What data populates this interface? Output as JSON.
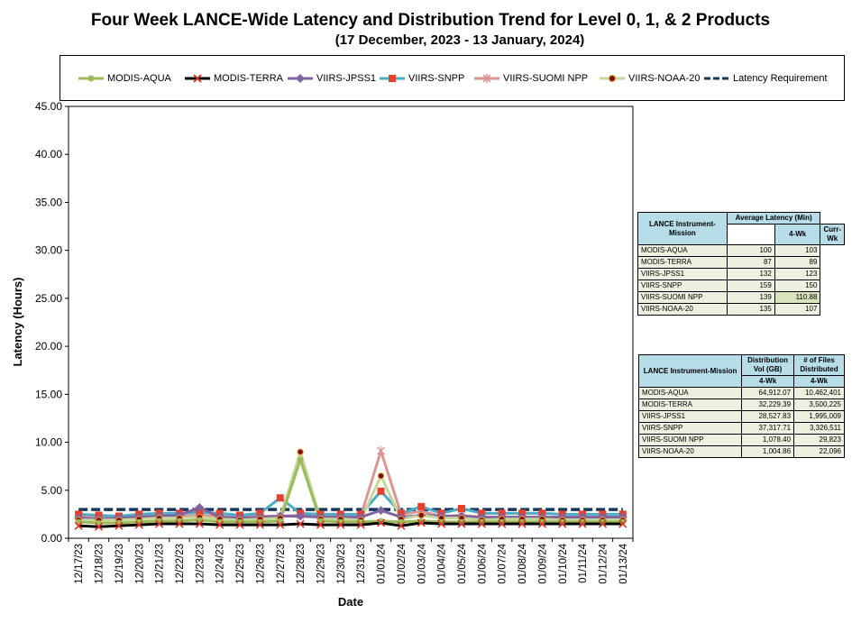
{
  "title": "Four Week LANCE-Wide Latency and Distribution Trend for Level 0, 1, & 2 Products",
  "subtitle": "(17  December,  2023  -  13  January, 2024)",
  "chart_data": {
    "type": "line",
    "xlabel": "Date",
    "ylabel": "Latency (Hours)",
    "ylim": [
      0,
      45
    ],
    "yticks": [
      "0.00",
      "5.00",
      "10.00",
      "15.00",
      "20.00",
      "25.00",
      "30.00",
      "35.00",
      "40.00",
      "45.00"
    ],
    "y_tick_values": [
      0,
      5,
      10,
      15,
      20,
      25,
      30,
      35,
      40,
      45
    ],
    "categories": [
      "12/17/23",
      "12/18/23",
      "12/19/23",
      "12/20/23",
      "12/21/23",
      "12/22/23",
      "12/23/23",
      "12/24/23",
      "12/25/23",
      "12/26/23",
      "12/27/23",
      "12/28/23",
      "12/29/23",
      "12/30/23",
      "12/31/23",
      "01/01/24",
      "01/02/24",
      "01/03/24",
      "01/04/24",
      "01/05/24",
      "01/06/24",
      "01/07/24",
      "01/08/24",
      "01/09/24",
      "01/10/24",
      "01/11/24",
      "01/12/24",
      "01/13/24"
    ],
    "grid": false,
    "legend_position": "top",
    "series": [
      {
        "name": "MODIS-AQUA",
        "color": "#9bbb59",
        "marker": "circle",
        "values": [
          1.7,
          1.6,
          1.6,
          1.7,
          1.8,
          1.8,
          1.9,
          1.7,
          1.7,
          1.7,
          1.8,
          8.2,
          1.8,
          1.7,
          1.7,
          1.8,
          1.7,
          1.8,
          1.7,
          1.7,
          1.7,
          1.7,
          1.7,
          1.7,
          1.7,
          1.7,
          1.7,
          1.7
        ]
      },
      {
        "name": "MODIS-TERRA",
        "color": "#000000",
        "marker": "x",
        "values": [
          1.3,
          1.2,
          1.3,
          1.4,
          1.5,
          1.5,
          1.5,
          1.4,
          1.4,
          1.4,
          1.4,
          1.5,
          1.4,
          1.4,
          1.4,
          1.6,
          1.3,
          1.6,
          1.5,
          1.5,
          1.5,
          1.5,
          1.5,
          1.5,
          1.5,
          1.5,
          1.5,
          1.5
        ]
      },
      {
        "name": "VIIRS-JPSS1",
        "color": "#8064a2",
        "marker": "diamond",
        "values": [
          2.1,
          2.0,
          2.1,
          2.2,
          2.3,
          2.4,
          3.2,
          2.2,
          2.1,
          2.2,
          2.3,
          2.3,
          2.2,
          2.2,
          2.2,
          2.9,
          2.2,
          2.4,
          2.3,
          2.3,
          2.2,
          2.2,
          2.2,
          2.2,
          2.2,
          2.2,
          2.2,
          2.2
        ]
      },
      {
        "name": "VIIRS-SNPP",
        "color": "#4bacc6",
        "marker": "square",
        "values": [
          2.5,
          2.4,
          2.3,
          2.5,
          2.6,
          2.6,
          2.7,
          2.6,
          2.4,
          2.6,
          4.2,
          2.6,
          2.5,
          2.5,
          2.5,
          4.9,
          2.6,
          3.3,
          2.6,
          3.1,
          2.6,
          2.6,
          2.6,
          2.6,
          2.5,
          2.5,
          2.5,
          2.5
        ]
      },
      {
        "name": "VIIRS-SUOMI NPP",
        "color": "#d99694",
        "marker": "asterisk",
        "values": [
          2.3,
          2.2,
          2.2,
          2.3,
          2.3,
          2.3,
          2.4,
          2.3,
          2.2,
          2.3,
          2.3,
          2.4,
          2.3,
          2.3,
          2.3,
          9.1,
          2.5,
          2.8,
          2.3,
          2.4,
          2.2,
          2.2,
          2.2,
          2.2,
          2.2,
          2.2,
          2.2,
          2.2
        ]
      },
      {
        "name": "VIIRS-NOAA-20",
        "color": "#c4d79b",
        "marker": "dot",
        "values": [
          1.9,
          1.9,
          1.9,
          2.0,
          2.1,
          2.1,
          2.2,
          2.0,
          1.9,
          2.0,
          2.1,
          9.0,
          2.0,
          2.0,
          1.9,
          6.5,
          2.0,
          2.4,
          2.1,
          2.1,
          1.9,
          2.0,
          2.0,
          2.0,
          1.9,
          1.9,
          1.9,
          1.9
        ]
      },
      {
        "name": "Latency Requirement",
        "color": "#17375e",
        "marker": "dash",
        "values": [
          3,
          3,
          3,
          3,
          3,
          3,
          3,
          3,
          3,
          3,
          3,
          3,
          3,
          3,
          3,
          3,
          3,
          3,
          3,
          3,
          3,
          3,
          3,
          3,
          3,
          3,
          3,
          3
        ]
      }
    ]
  },
  "latency_table": {
    "header_mission": "LANCE Instrument-Mission",
    "header_avg": "Average Latency (Min)",
    "col_4wk": "4-Wk",
    "col_curr": "Curr-Wk",
    "rows": [
      {
        "name": "MODIS-AQUA",
        "wk4": "100",
        "curr": "103"
      },
      {
        "name": "MODIS-TERRA",
        "wk4": "87",
        "curr": "89"
      },
      {
        "name": "VIIRS-JPSS1",
        "wk4": "132",
        "curr": "123"
      },
      {
        "name": "VIIRS-SNPP",
        "wk4": "159",
        "curr": "150"
      },
      {
        "name": "VIIRS-SUOMI NPP",
        "wk4": "139",
        "curr": "110.88"
      },
      {
        "name": "VIIRS-NOAA-20",
        "wk4": "135",
        "curr": "107"
      }
    ]
  },
  "distribution_table": {
    "header_mission": "LANCE Instrument-Mission",
    "header_vol": "Distribution Vol (GB)",
    "header_files": "# of Files Distributed",
    "col_vol": "4-Wk",
    "col_files": "4-Wk",
    "rows": [
      {
        "name": "MODIS-AQUA",
        "vol": "64,912.07",
        "files": "10,462,401"
      },
      {
        "name": "MODIS-TERRA",
        "vol": "32,229.39",
        "files": "3,500,225"
      },
      {
        "name": "VIIRS-JPSS1",
        "vol": "28,527.83",
        "files": "1,995,009"
      },
      {
        "name": "VIIRS-SNPP",
        "vol": "37,317.71",
        "files": "3,326,511"
      },
      {
        "name": "VIIRS-SUOMI NPP",
        "vol": "1,078.40",
        "files": "29,823"
      },
      {
        "name": "VIIRS-NOAA-20",
        "vol": "1,004.86",
        "files": "22,096"
      }
    ]
  }
}
